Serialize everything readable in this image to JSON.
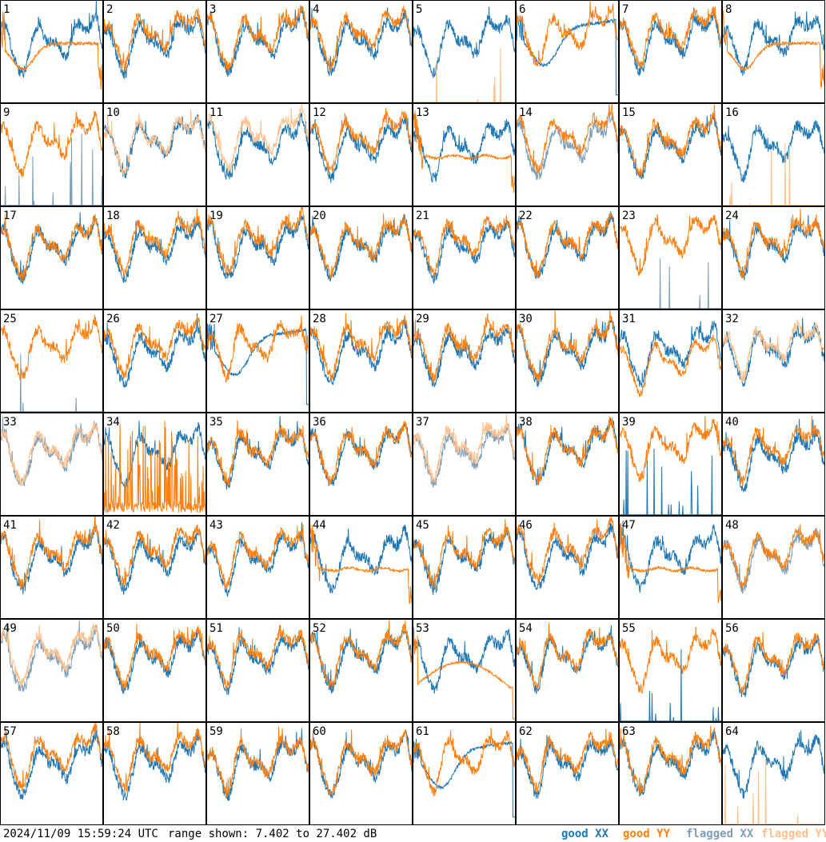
{
  "chart_data": {
    "type": "line",
    "title": "",
    "panel_count": 64,
    "panel_labels": [
      "1",
      "2",
      "3",
      "4",
      "5",
      "6",
      "7",
      "8",
      "9",
      "10",
      "11",
      "12",
      "13",
      "14",
      "15",
      "16",
      "17",
      "18",
      "19",
      "20",
      "21",
      "22",
      "23",
      "24",
      "25",
      "26",
      "27",
      "28",
      "29",
      "30",
      "31",
      "32",
      "33",
      "34",
      "35",
      "36",
      "37",
      "38",
      "39",
      "40",
      "41",
      "42",
      "43",
      "44",
      "45",
      "46",
      "47",
      "48",
      "49",
      "50",
      "51",
      "52",
      "53",
      "54",
      "55",
      "56",
      "57",
      "58",
      "59",
      "60",
      "61",
      "62",
      "63",
      "64"
    ],
    "ylim": [
      7.402,
      27.402
    ],
    "yunit": "dB",
    "grid": false,
    "legend": [
      {
        "label": "good XX",
        "color": "#1f77b4"
      },
      {
        "label": "good YY",
        "color": "#ff7f0e"
      },
      {
        "label": "flagged XX",
        "color": "#7f9fb8"
      },
      {
        "label": "flagged YY",
        "color": "#ffc08c"
      }
    ],
    "colors": {
      "goodXX": "#1f77b4",
      "goodYY": "#ff7f0e",
      "flagXX": "#7f9fb8",
      "flagYY": "#ffc08c"
    },
    "series_status": {
      "flagged_xx": [
        "9",
        "14",
        "23",
        "25",
        "33",
        "37",
        "48",
        "49"
      ],
      "flagged_yy": [
        "5",
        "10",
        "11",
        "16",
        "32",
        "33",
        "37",
        "49",
        "64"
      ],
      "odd_patterns": {
        "6": "xx_dip",
        "27": "xx_dip",
        "61": "xx_dip",
        "13": "yy_flat",
        "44": "yy_flat",
        "47": "yy_flat",
        "53": "yy_dome",
        "5": "yy_spikes",
        "16": "yy_spikes",
        "64": "yy_spikes",
        "9": "xx_spikes",
        "23": "xx_spikes",
        "25": "xx_spikes",
        "39": "xx_spikes",
        "55": "xx_spikes",
        "34": "yy_dense_spikes",
        "1": "yy_sag",
        "8": "yy_sag",
        "31": "yy_low"
      }
    }
  },
  "footer": {
    "timestamp": "2024/11/09 15:59:24 UTC",
    "range": "range shown: 7.402 to 27.402 dB",
    "good_xx": "good XX",
    "good_yy": "good YY",
    "flagged_xx": "flagged XX",
    "flagged_yy": "flagged YY"
  }
}
